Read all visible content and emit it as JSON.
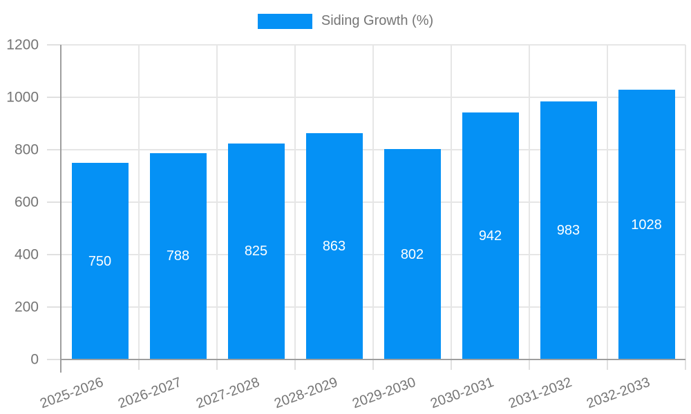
{
  "legend": {
    "label": "Siding Growth (%)"
  },
  "chart_data": {
    "type": "bar",
    "title": "",
    "categories": [
      "2025-2026",
      "2026-2027",
      "2027-2028",
      "2028-2029",
      "2029-2030",
      "2030-2031",
      "2031-2032",
      "2032-2033"
    ],
    "series": [
      {
        "name": "Siding Growth (%)",
        "values": [
          750,
          788,
          825,
          863,
          802,
          942,
          983,
          1028
        ]
      }
    ],
    "xlabel": "",
    "ylabel": "",
    "ylim": [
      0,
      1200
    ],
    "yticks": [
      0,
      200,
      400,
      600,
      800,
      1000,
      1200
    ],
    "grid": true,
    "legend_position": "top",
    "bar_color": "#0591f5",
    "value_label_color": "#ffffff",
    "axis_text_color": "#757575",
    "gridline_color": "#e6e6e6",
    "axis_line_color": "#9e9e9e"
  }
}
